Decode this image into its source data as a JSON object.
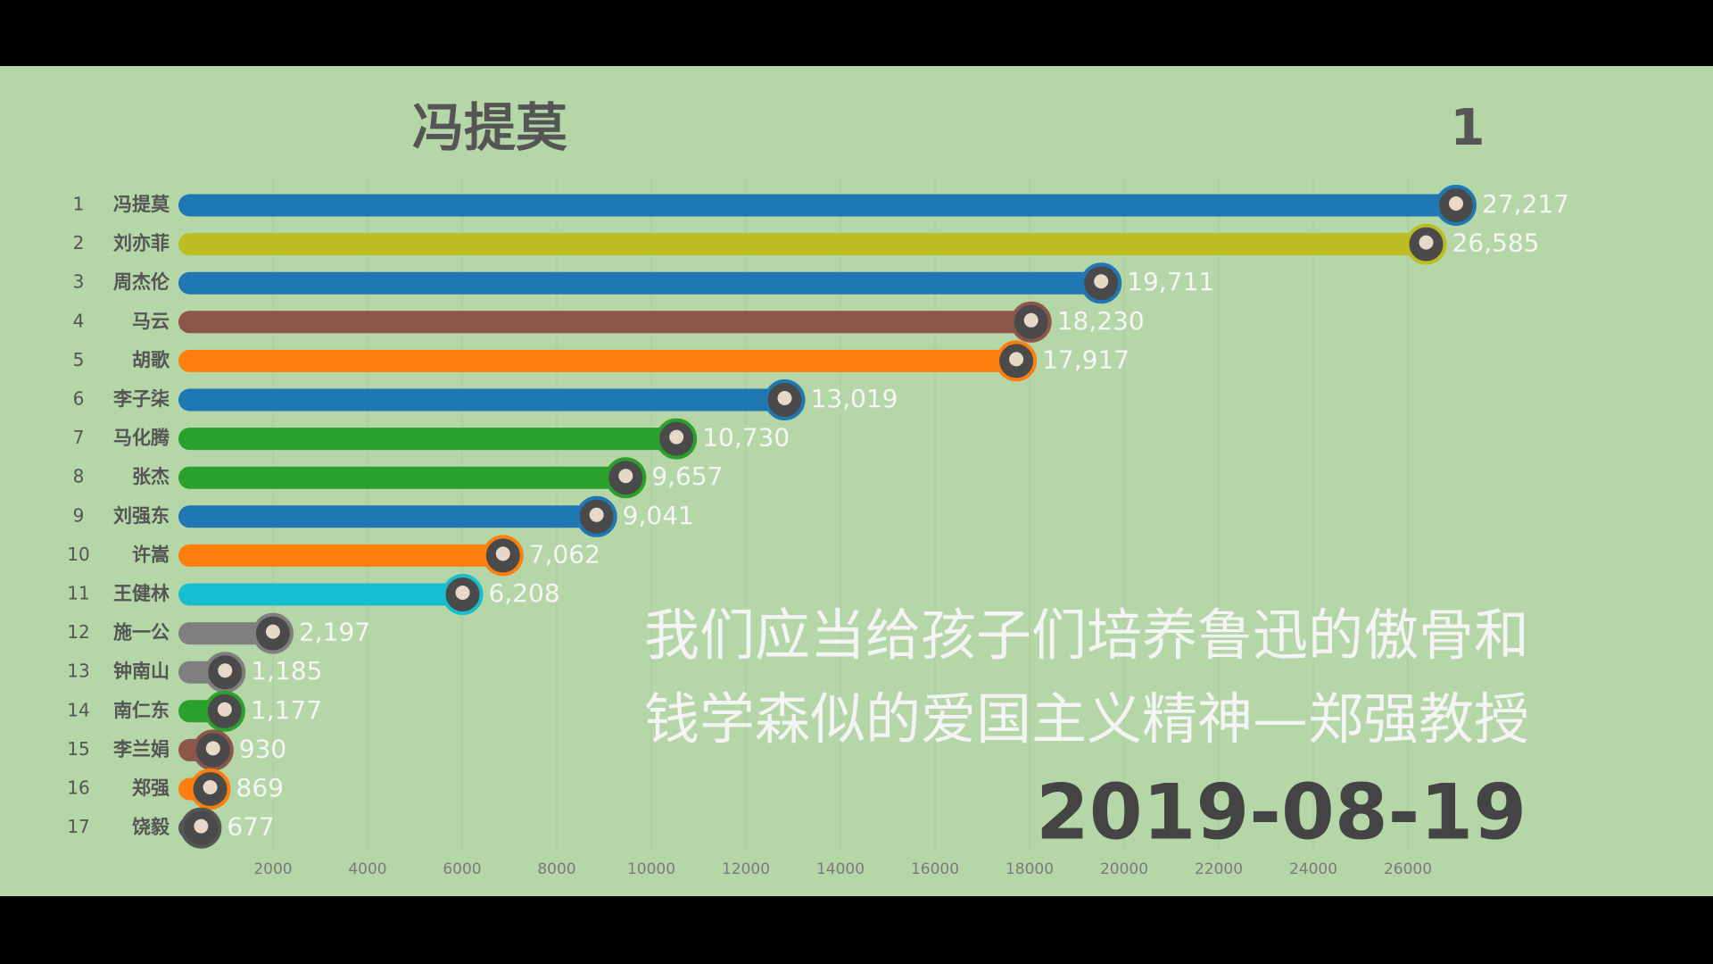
{
  "chart_data": {
    "type": "bar",
    "orientation": "horizontal",
    "title": "冯提莫",
    "counter": 1,
    "categories": [
      "冯提莫",
      "刘亦菲",
      "周杰伦",
      "马云",
      "胡歌",
      "李子柒",
      "马化腾",
      "张杰",
      "刘强东",
      "许嵩",
      "王健林",
      "施一公",
      "钟南山",
      "南仁东",
      "李兰娟",
      "郑强",
      "饶毅"
    ],
    "ranks": [
      1,
      2,
      3,
      4,
      5,
      6,
      7,
      8,
      9,
      10,
      11,
      12,
      13,
      14,
      15,
      16,
      17
    ],
    "values": [
      27217,
      26585,
      19711,
      18230,
      17917,
      13019,
      10730,
      9657,
      9041,
      7062,
      6208,
      2197,
      1185,
      1177,
      930,
      869,
      677
    ],
    "value_labels": [
      "27,217",
      "26,585",
      "19,711",
      "18,230",
      "17,917",
      "13,019",
      "10,730",
      "9,657",
      "9,041",
      "7,062",
      "6,208",
      "2,197",
      "1,185",
      "1,177",
      "930",
      "869",
      "677"
    ],
    "colors": [
      "#1f77b4",
      "#bcbd22",
      "#1f77b4",
      "#8c564b",
      "#ff7f0e",
      "#1f77b4",
      "#2ca02c",
      "#2ca02c",
      "#1f77b4",
      "#ff7f0e",
      "#17becf",
      "#7f7f7f",
      "#7f7f7f",
      "#2ca02c",
      "#8c564b",
      "#ff7f0e",
      "#555555"
    ],
    "xlim": [
      0,
      28000
    ],
    "xticks": [
      2000,
      4000,
      6000,
      8000,
      10000,
      12000,
      14000,
      16000,
      18000,
      20000,
      22000,
      24000,
      26000
    ],
    "grid": true,
    "caption": [
      "我们应当给孩子们培养鲁迅的傲骨和",
      "钱学森似的爱国主义精神—郑强教授"
    ],
    "date": "2019-08-19"
  }
}
